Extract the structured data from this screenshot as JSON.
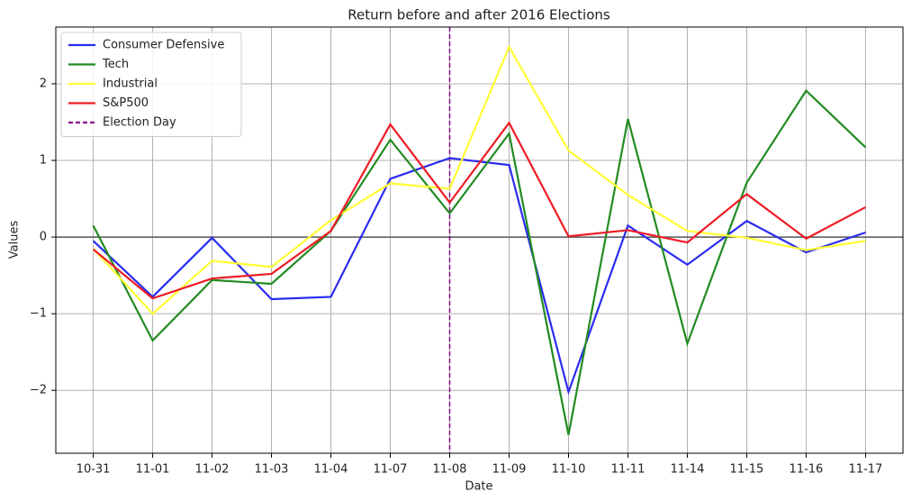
{
  "chart_data": {
    "type": "line",
    "title": "Return before and after 2016 Elections",
    "x_label": "Date",
    "y_label": "Values",
    "categories": [
      "10-31",
      "11-01",
      "11-02",
      "11-03",
      "11-04",
      "11-07",
      "11-08",
      "11-09",
      "11-10",
      "11-11",
      "11-14",
      "11-15",
      "11-16",
      "11-17"
    ],
    "series": [
      {
        "name": "Consumer Defensive",
        "color": "#2b2bf0",
        "values": [
          -0.05,
          -0.78,
          -0.01,
          -0.81,
          -0.78,
          0.76,
          1.03,
          0.94,
          -2.02,
          0.15,
          -0.36,
          0.21,
          -0.2,
          0.06
        ]
      },
      {
        "name": "Tech",
        "color": "#228b22",
        "values": [
          0.15,
          -1.35,
          -0.56,
          -0.61,
          0.08,
          1.27,
          0.31,
          1.35,
          -2.58,
          1.54,
          -1.39,
          0.71,
          1.91,
          1.17
        ]
      },
      {
        "name": "Industrial",
        "color": "#ffff33",
        "values": [
          -0.15,
          -1.0,
          -0.31,
          -0.39,
          0.22,
          0.7,
          0.63,
          2.48,
          1.13,
          0.55,
          0.08,
          -0.01,
          -0.17,
          -0.05
        ]
      },
      {
        "name": "S&P500",
        "color": "#ee1c25",
        "values": [
          -0.16,
          -0.8,
          -0.54,
          -0.48,
          0.08,
          1.47,
          0.45,
          1.49,
          0.01,
          0.09,
          -0.07,
          0.56,
          -0.02,
          0.39
        ]
      }
    ],
    "vline": {
      "name": "Election Day",
      "category_index": 6,
      "color": "#8b008b"
    },
    "hline": 0,
    "ylim": [
      -2.82,
      2.74
    ],
    "yticks": [
      {
        "value": -2,
        "label": "−2"
      },
      {
        "value": -1,
        "label": "−1"
      },
      0,
      1,
      2
    ],
    "grid": true,
    "legend": "upper left"
  }
}
